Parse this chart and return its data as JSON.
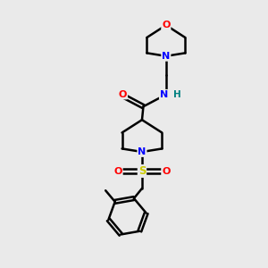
{
  "background_color": "#eaeaea",
  "bond_color": "#000000",
  "atom_colors": {
    "O": "#ff0000",
    "N": "#0000ff",
    "S": "#cccc00",
    "H": "#008080",
    "C": "#000000"
  },
  "figsize": [
    3.0,
    3.0
  ],
  "dpi": 100
}
